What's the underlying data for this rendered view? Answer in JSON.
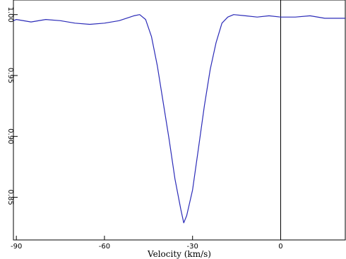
{
  "chart_data": {
    "type": "line",
    "title": "",
    "xlabel": "Velocity (km/s)",
    "ylabel": "",
    "xlim": [
      -91,
      22
    ],
    "ylim": [
      0.815,
      1.012
    ],
    "xticks": [
      -90,
      -60,
      -30,
      0
    ],
    "xtick_labels": [
      "-90",
      "-60",
      "-30",
      "0"
    ],
    "yticks": [
      1.0,
      0.95,
      0.9,
      0.85
    ],
    "ytick_labels": [
      "1.00",
      "0.95",
      "0.90",
      "0.85"
    ],
    "grid": false,
    "vertical_marker_x": 0,
    "series": [
      {
        "name": "",
        "color": "#2b2bb8",
        "x": [
          -91,
          -90,
          -85,
          -80,
          -75,
          -70,
          -65,
          -60,
          -55,
          -50,
          -48,
          -46,
          -44,
          -42,
          -40,
          -38,
          -36,
          -34,
          -33,
          -32,
          -30,
          -28,
          -26,
          -24,
          -22,
          -20,
          -18,
          -16,
          -12,
          -8,
          -4,
          0,
          5,
          10,
          15,
          20,
          22
        ],
        "y": [
          0.995,
          0.996,
          0.994,
          0.996,
          0.995,
          0.993,
          0.992,
          0.993,
          0.995,
          0.999,
          1.0,
          0.996,
          0.982,
          0.958,
          0.928,
          0.898,
          0.865,
          0.84,
          0.829,
          0.835,
          0.856,
          0.89,
          0.925,
          0.955,
          0.977,
          0.993,
          0.998,
          1.0,
          0.999,
          0.998,
          0.999,
          0.998,
          0.998,
          0.999,
          0.997,
          0.997,
          0.997
        ]
      }
    ]
  }
}
